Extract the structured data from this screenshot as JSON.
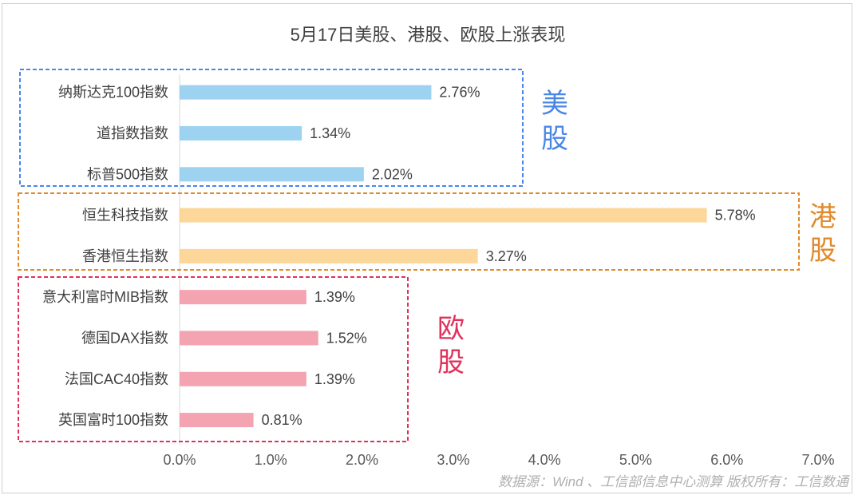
{
  "chart_data": {
    "type": "bar",
    "orientation": "horizontal",
    "title": "5月17日美股、港股、欧股上涨表现",
    "categories": [
      "纳斯达克100指数",
      "道指数指数",
      "标普500指数",
      "恒生科技指数",
      "香港恒生指数",
      "意大利富时MIB指数",
      "德国DAX指数",
      "法国CAC40指数",
      "英国富时100指数"
    ],
    "values": [
      2.76,
      1.34,
      2.02,
      5.78,
      3.27,
      1.39,
      1.52,
      1.39,
      0.81
    ],
    "value_labels": [
      "2.76%",
      "1.34%",
      "2.02%",
      "5.78%",
      "3.27%",
      "1.39%",
      "1.52%",
      "1.39%",
      "0.81%"
    ],
    "xlim": [
      0,
      7
    ],
    "x_ticks": [
      "0.0%",
      "1.0%",
      "2.0%",
      "3.0%",
      "4.0%",
      "5.0%",
      "6.0%",
      "7.0%"
    ],
    "groups": [
      {
        "label_line1": "美",
        "label_line2": "股",
        "start": 0,
        "end": 2,
        "color": "#4a86e8",
        "bar_color": "#9dd3f0"
      },
      {
        "label_line1": "港",
        "label_line2": "股",
        "start": 3,
        "end": 4,
        "color": "#e08a2c",
        "bar_color": "#fdd79a"
      },
      {
        "label_line1": "欧",
        "label_line2": "股",
        "start": 5,
        "end": 8,
        "color": "#e0315c",
        "bar_color": "#f4a3b0"
      }
    ],
    "source": "数据源：Wind 、工信部信息中心测算   版权所有：工信数通",
    "grid": false
  }
}
